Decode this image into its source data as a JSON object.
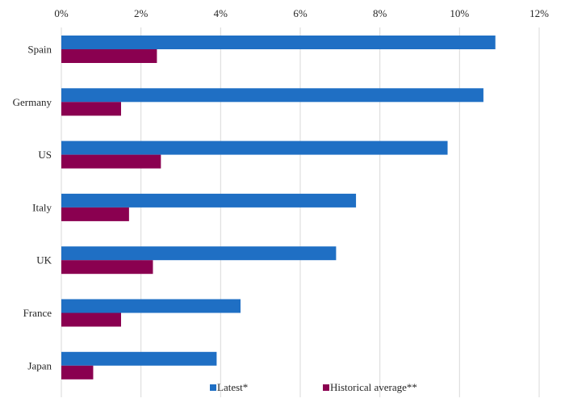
{
  "chart_data": {
    "type": "bar",
    "orientation": "horizontal",
    "title": "",
    "xlabel": "",
    "ylabel": "",
    "xlim": [
      0,
      12
    ],
    "x_ticks": [
      0,
      2,
      4,
      6,
      8,
      10,
      12
    ],
    "x_tick_suffix": "%",
    "x_axis_position": "top",
    "grid": true,
    "legend_position": "bottom-right-inside",
    "categories": [
      "Spain",
      "Germany",
      "US",
      "Italy",
      "UK",
      "France",
      "Japan"
    ],
    "series": [
      {
        "name": "Latest*",
        "color": "#1f6fc4",
        "values": [
          10.9,
          10.6,
          9.7,
          7.4,
          6.9,
          4.5,
          3.9
        ]
      },
      {
        "name": "Historical average**",
        "color": "#8a0050",
        "values": [
          2.4,
          1.5,
          2.5,
          1.7,
          2.3,
          1.5,
          0.8
        ]
      }
    ]
  }
}
